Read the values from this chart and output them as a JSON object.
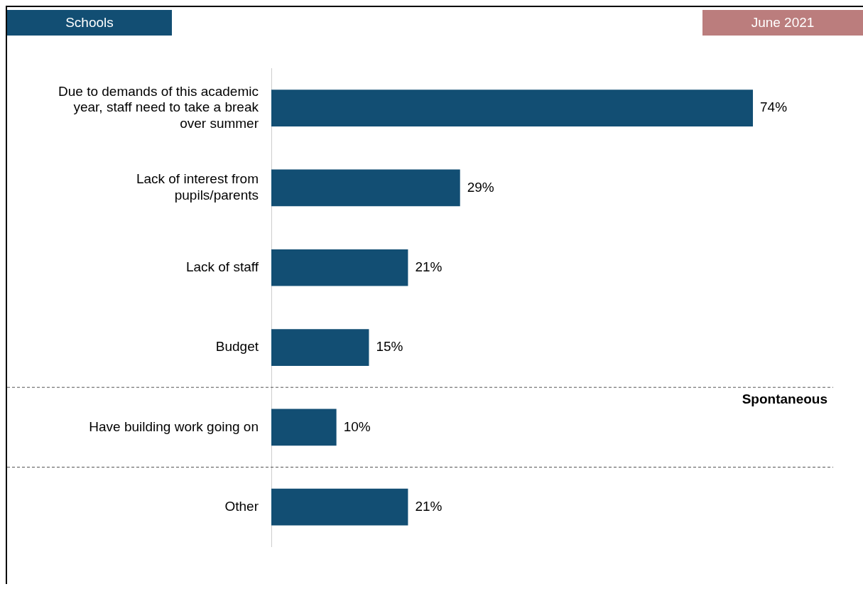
{
  "chart_data": {
    "type": "bar",
    "orientation": "horizontal",
    "title": "Schools",
    "subtitle": "June 2021",
    "categories": [
      "Due to demands of this academic year, staff need to take a break over summer",
      "Lack of interest from pupils/parents",
      "Lack of staff",
      "Budget",
      "Have building work going on",
      "Other"
    ],
    "values": [
      74,
      29,
      21,
      15,
      10,
      21
    ],
    "color": "#124e73",
    "value_labels": [
      "74%",
      "29%",
      "21%",
      "15%",
      "10%",
      "21%"
    ],
    "tick_labels": "y",
    "grid": false,
    "legend": false,
    "annotations": [
      "Spontaneous"
    ]
  }
}
